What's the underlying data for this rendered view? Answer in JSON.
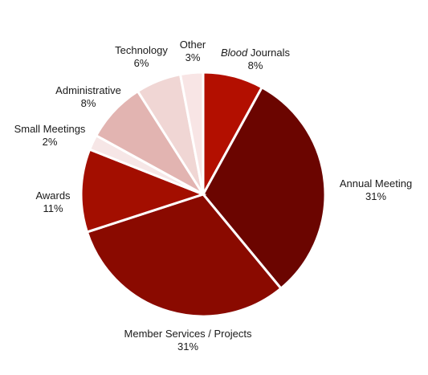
{
  "chart_data": {
    "type": "pie",
    "start_angle_deg": 0,
    "direction": "clockwise",
    "slices": [
      {
        "label_italic": "Blood",
        "label": " Journals",
        "value": 8,
        "pct_label": "8%",
        "color": "#b30f00"
      },
      {
        "label_italic": "",
        "label": "Annual Meeting",
        "value": 31,
        "pct_label": "31%",
        "color": "#6b0500"
      },
      {
        "label_italic": "",
        "label": "Member Services / Projects",
        "value": 31,
        "pct_label": "31%",
        "color": "#8a0a00"
      },
      {
        "label_italic": "",
        "label": "Awards",
        "value": 11,
        "pct_label": "11%",
        "color": "#a30e00"
      },
      {
        "label_italic": "",
        "label": "Small Meetings",
        "value": 2,
        "pct_label": "2%",
        "color": "#f6e6e6"
      },
      {
        "label_italic": "",
        "label": "Administrative",
        "value": 8,
        "pct_label": "8%",
        "color": "#e2b4b1"
      },
      {
        "label_italic": "",
        "label": "Technology",
        "value": 6,
        "pct_label": "6%",
        "color": "#f0d6d4"
      },
      {
        "label_italic": "",
        "label": "Other",
        "value": 3,
        "pct_label": "3%",
        "color": "#f8e5e5"
      }
    ]
  }
}
